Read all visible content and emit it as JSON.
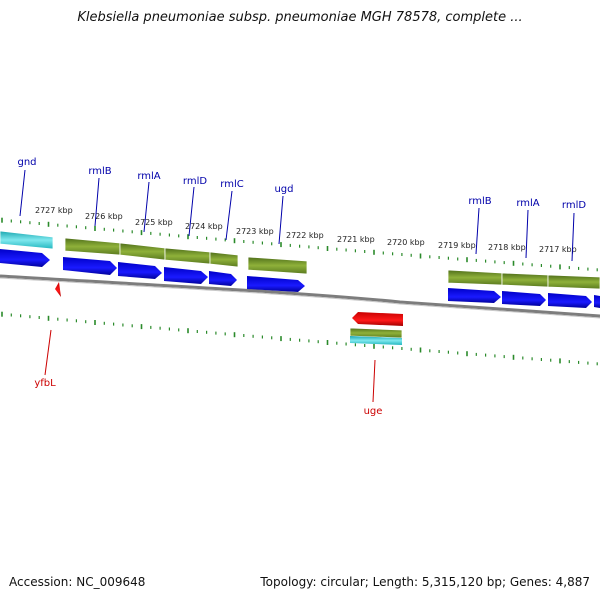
{
  "title": "Klebsiella pneumoniae subsp. pneumoniae MGH 78578, complete ...",
  "footer": {
    "accession": "Accession: NC_009648",
    "summary": "Topology: circular; Length: 5,315,120 bp; Genes: 4,887"
  },
  "colors": {
    "gene_label_top": "#0000aa",
    "gene_label_bottom": "#cc0000",
    "cds_forward": "#1010ee",
    "cds_reverse": "#ee1010",
    "gene_green": "#6b8e23",
    "gene_teal": "#2ec4cc",
    "tick": "#2a8a2a",
    "backbone": "#888888"
  },
  "tick_labels": [
    "2727 kbp",
    "2726 kbp",
    "2725 kbp",
    "2724 kbp",
    "2723 kbp",
    "2722 kbp",
    "2721 kbp",
    "2720 kbp",
    "2719 kbp",
    "2718 kbp",
    "2717 kbp"
  ],
  "top_gene_labels": [
    "gnd",
    "rmlB",
    "rmlA",
    "rmlD",
    "rmlC",
    "ugd",
    "rmlB",
    "rmlA",
    "rmlD"
  ],
  "bottom_gene_labels": [
    "yfbL",
    "uge"
  ]
}
